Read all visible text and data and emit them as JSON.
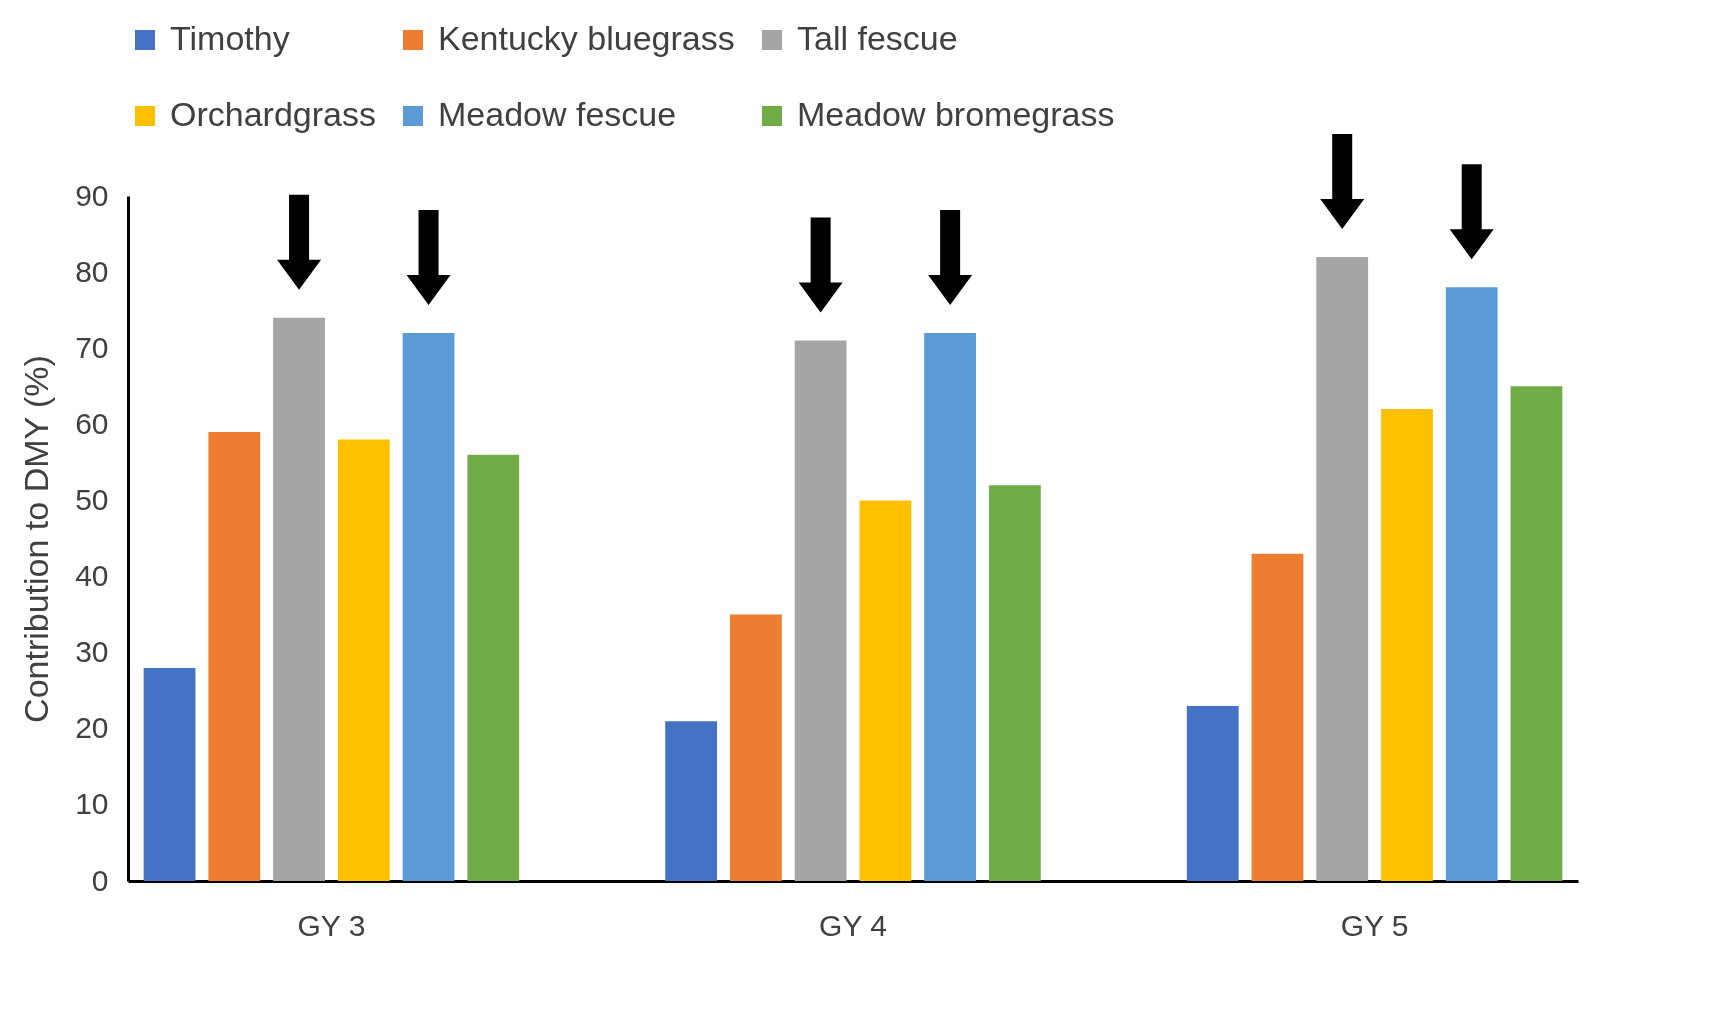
{
  "chart_data": {
    "type": "bar",
    "ylabel": "Contribution to DMY (%)",
    "categories": [
      "GY 3",
      "GY 4",
      "GY 5"
    ],
    "series": [
      {
        "name": "Timothy",
        "color": "#4472c4",
        "values": [
          28,
          21,
          23
        ]
      },
      {
        "name": "Kentucky bluegrass",
        "color": "#ed7d31",
        "values": [
          59,
          35,
          43
        ]
      },
      {
        "name": "Tall fescue",
        "color": "#a5a5a5",
        "values": [
          74,
          71,
          82
        ]
      },
      {
        "name": "Orchardgrass",
        "color": "#ffc000",
        "values": [
          58,
          50,
          62
        ]
      },
      {
        "name": "Meadow fescue",
        "color": "#5b9bd5",
        "values": [
          72,
          72,
          78
        ]
      },
      {
        "name": "Meadow bromegrass",
        "color": "#70ad47",
        "values": [
          56,
          52,
          65
        ]
      }
    ],
    "ylim": [
      0,
      90
    ],
    "yticks": [
      0,
      10,
      20,
      30,
      40,
      50,
      60,
      70,
      80,
      90
    ],
    "grid": false,
    "legend": "top"
  }
}
